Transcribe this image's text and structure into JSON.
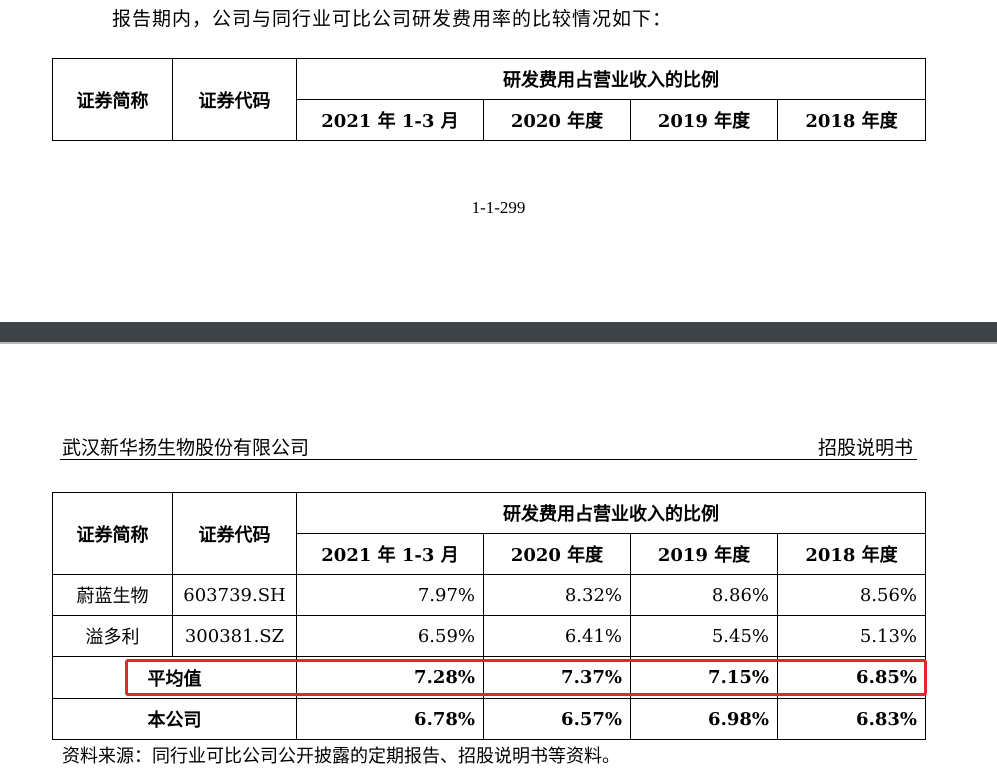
{
  "intro_text": "报告期内，公司与同行业可比公司研发费用率的比较情况如下：",
  "page_number": "1-1-299",
  "doc_header": {
    "company": "武汉新华扬生物股份有限公司",
    "doc_type": "招股说明书"
  },
  "table": {
    "col_name": "证券简称",
    "col_code": "证券代码",
    "group_header": "研发费用占营业收入的比例",
    "periods": [
      "2021 年 1-3 月",
      "2020 年度",
      "2019 年度",
      "2018 年度"
    ],
    "rows": [
      {
        "name": "蔚蓝生物",
        "code": "603739.SH",
        "values": [
          "7.97%",
          "8.32%",
          "8.86%",
          "8.56%"
        ]
      },
      {
        "name": "溢多利",
        "code": "300381.SZ",
        "values": [
          "6.59%",
          "6.41%",
          "5.45%",
          "5.13%"
        ]
      }
    ],
    "average": {
      "label": "平均值",
      "values": [
        "7.28%",
        "7.37%",
        "7.15%",
        "6.85%"
      ]
    },
    "company": {
      "label": "本公司",
      "values": [
        "6.78%",
        "6.57%",
        "6.98%",
        "6.83%"
      ]
    }
  },
  "source_note": "资料来源：同行业可比公司公开披露的定期报告、招股说明书等资料。",
  "highlight_color": "#e6262a"
}
